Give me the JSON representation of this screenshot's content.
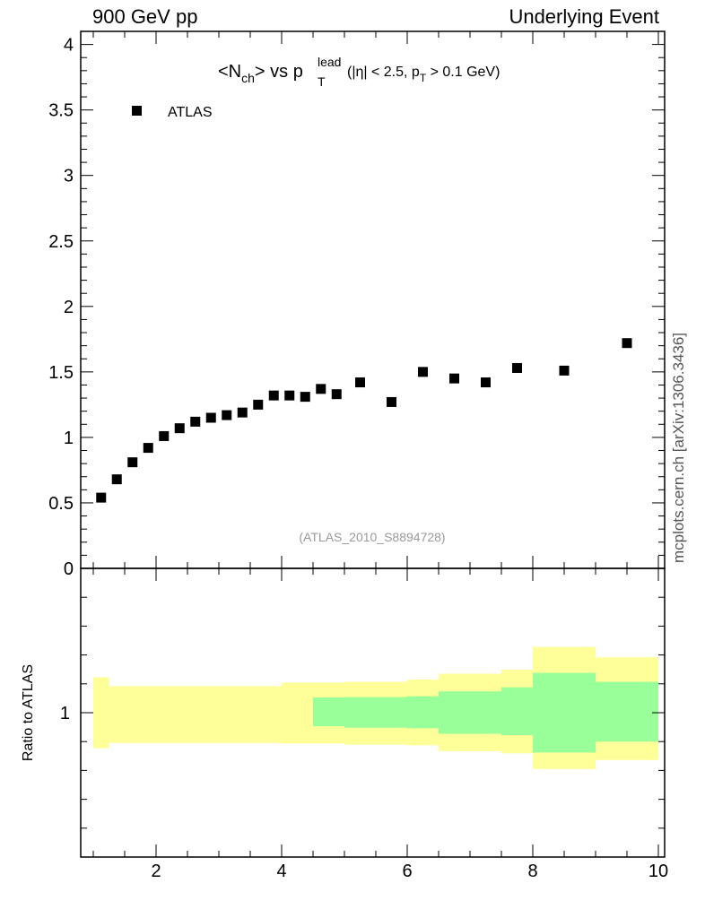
{
  "header": {
    "left": "900 GeV pp",
    "right": "Underlying Event"
  },
  "side_label": "mcplots.cern.ch [arXiv:1306.3436]",
  "chart_data": [
    {
      "type": "scatter",
      "title_parts": {
        "main": "<N",
        "sub_ch": "ch",
        "mid": "> vs p",
        "sup": "lead",
        "sub_t": "T",
        "cuts_a": "(|η| < 2.5, p",
        "cuts_sub": "T",
        "cuts_b": " > 0.1 GeV)"
      },
      "watermark": "(ATLAS_2010_S8894728)",
      "xlim": [
        0.8,
        10.1
      ],
      "ylim": [
        0,
        4.1
      ],
      "y_ticks": [
        0,
        0.5,
        1,
        1.5,
        2,
        2.5,
        3,
        3.5,
        4
      ],
      "y_tick_labels": [
        "0",
        "0.5",
        "1",
        "1.5",
        "2",
        "2.5",
        "3",
        "3.5",
        "4"
      ],
      "legend": "top-left",
      "series": [
        {
          "name": "ATLAS",
          "color": "#000000",
          "marker": "square",
          "x": [
            1.125,
            1.375,
            1.625,
            1.875,
            2.125,
            2.375,
            2.625,
            2.875,
            3.125,
            3.375,
            3.625,
            3.875,
            4.125,
            4.375,
            4.625,
            4.875,
            5.25,
            5.75,
            6.25,
            6.75,
            7.25,
            7.75,
            8.5,
            9.5
          ],
          "y": [
            0.54,
            0.68,
            0.81,
            0.92,
            1.01,
            1.07,
            1.12,
            1.15,
            1.17,
            1.19,
            1.25,
            1.32,
            1.32,
            1.31,
            1.37,
            1.33,
            1.42,
            1.27,
            1.5,
            1.45,
            1.42,
            1.53,
            1.51,
            1.72
          ]
        }
      ]
    },
    {
      "type": "area",
      "ylabel": "Ratio to ATLAS",
      "xlim": [
        0.8,
        10.1
      ],
      "ylim": [
        0.5,
        1.5
      ],
      "y_tick_labels": [
        "1"
      ],
      "x_ticks": [
        2,
        4,
        6,
        8,
        10
      ],
      "x_tick_labels": [
        "2",
        "4",
        "6",
        "8",
        "10"
      ],
      "bands": [
        {
          "name": "total uncertainty",
          "color": "#ffff99",
          "bins": [
            [
              1.0,
              1.25,
              0.877,
              1.123
            ],
            [
              1.25,
              4.0,
              0.895,
              1.092
            ],
            [
              4.0,
              5.0,
              0.893,
              1.104
            ],
            [
              5.0,
              6.0,
              0.889,
              1.107
            ],
            [
              6.0,
              6.5,
              0.887,
              1.115
            ],
            [
              6.5,
              7.5,
              0.867,
              1.135
            ],
            [
              7.5,
              8.0,
              0.859,
              1.149
            ],
            [
              8.0,
              9.0,
              0.805,
              1.228
            ],
            [
              9.0,
              10.0,
              0.836,
              1.192
            ]
          ]
        },
        {
          "name": "statistical uncertainty",
          "color": "#99ff99",
          "bins": [
            [
              4.5,
              5.0,
              0.953,
              1.053
            ],
            [
              5.0,
              6.0,
              0.948,
              1.054
            ],
            [
              6.0,
              6.5,
              0.946,
              1.057
            ],
            [
              6.5,
              7.5,
              0.927,
              1.074
            ],
            [
              7.5,
              8.0,
              0.922,
              1.088
            ],
            [
              8.0,
              9.0,
              0.862,
              1.138
            ],
            [
              9.0,
              10.0,
              0.9,
              1.107
            ]
          ]
        }
      ]
    }
  ]
}
